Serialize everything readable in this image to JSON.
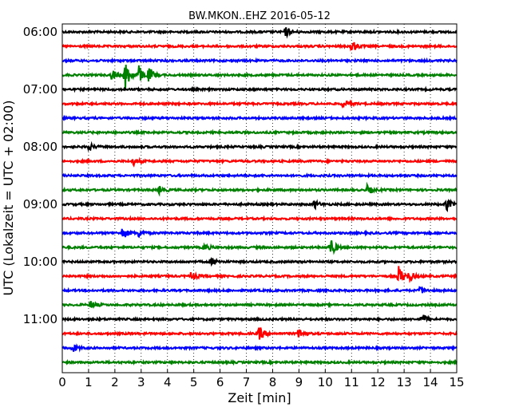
{
  "chart_data": {
    "type": "line",
    "title": "BW.MKON..EHZ 2016-05-12",
    "xlabel": "Zeit  [min]",
    "ylabel": "UTC (Lokalzeit = UTC + 02:00)",
    "xlim": [
      0,
      15
    ],
    "x_ticks": [
      "0",
      "1",
      "2",
      "3",
      "4",
      "5",
      "6",
      "7",
      "8",
      "9",
      "10",
      "11",
      "12",
      "13",
      "14",
      "15"
    ],
    "y_tick_labels": [
      "06:00",
      "07:00",
      "08:00",
      "09:00",
      "10:00",
      "11:00"
    ],
    "grid": "vertical dotted",
    "trace_interval_min": 15,
    "colors": [
      "#000000",
      "#ff0000",
      "#0000ff",
      "#008000"
    ],
    "series": [
      {
        "start": "06:00",
        "color": "#000000",
        "events": [
          {
            "t": 8.5,
            "amp": 0.5
          }
        ]
      },
      {
        "start": "06:15",
        "color": "#ff0000",
        "events": [
          {
            "t": 11.0,
            "amp": 0.7
          }
        ]
      },
      {
        "start": "06:30",
        "color": "#0000ff",
        "events": []
      },
      {
        "start": "06:45",
        "color": "#008000",
        "events": [
          {
            "t": 1.9,
            "amp": 0.6
          },
          {
            "t": 2.4,
            "amp": 1.6
          },
          {
            "t": 2.9,
            "amp": 1.0
          },
          {
            "t": 3.3,
            "amp": 0.7
          }
        ]
      },
      {
        "start": "07:00",
        "color": "#000000",
        "events": []
      },
      {
        "start": "07:15",
        "color": "#ff0000",
        "events": [
          {
            "t": 10.7,
            "amp": 0.5
          }
        ]
      },
      {
        "start": "07:30",
        "color": "#0000ff",
        "events": []
      },
      {
        "start": "07:45",
        "color": "#008000",
        "events": []
      },
      {
        "start": "08:00",
        "color": "#000000",
        "events": [
          {
            "t": 1.0,
            "amp": 0.4
          }
        ]
      },
      {
        "start": "08:15",
        "color": "#ff0000",
        "events": [
          {
            "t": 2.7,
            "amp": 0.4
          }
        ]
      },
      {
        "start": "08:30",
        "color": "#0000ff",
        "events": []
      },
      {
        "start": "08:45",
        "color": "#008000",
        "events": [
          {
            "t": 3.7,
            "amp": 0.4
          },
          {
            "t": 11.6,
            "amp": 0.5
          }
        ]
      },
      {
        "start": "09:00",
        "color": "#000000",
        "events": [
          {
            "t": 9.6,
            "amp": 0.4
          },
          {
            "t": 14.6,
            "amp": 0.7
          }
        ]
      },
      {
        "start": "09:15",
        "color": "#ff0000",
        "events": []
      },
      {
        "start": "09:30",
        "color": "#0000ff",
        "events": [
          {
            "t": 2.3,
            "amp": 0.7
          },
          {
            "t": 2.9,
            "amp": 0.4
          }
        ]
      },
      {
        "start": "09:45",
        "color": "#008000",
        "events": [
          {
            "t": 10.2,
            "amp": 1.0
          },
          {
            "t": 5.4,
            "amp": 0.4
          }
        ]
      },
      {
        "start": "10:00",
        "color": "#000000",
        "events": [
          {
            "t": 5.7,
            "amp": 0.4
          }
        ]
      },
      {
        "start": "10:15",
        "color": "#ff0000",
        "events": [
          {
            "t": 4.9,
            "amp": 0.5
          },
          {
            "t": 12.8,
            "amp": 1.1
          },
          {
            "t": 13.2,
            "amp": 0.5
          }
        ]
      },
      {
        "start": "10:30",
        "color": "#0000ff",
        "events": [
          {
            "t": 13.6,
            "amp": 0.4
          }
        ]
      },
      {
        "start": "10:45",
        "color": "#008000",
        "events": [
          {
            "t": 1.1,
            "amp": 0.4
          }
        ]
      },
      {
        "start": "11:00",
        "color": "#000000",
        "events": [
          {
            "t": 13.7,
            "amp": 0.5
          }
        ]
      },
      {
        "start": "11:15",
        "color": "#ff0000",
        "events": [
          {
            "t": 7.5,
            "amp": 0.8
          },
          {
            "t": 9.0,
            "amp": 0.6
          }
        ]
      },
      {
        "start": "11:30",
        "color": "#0000ff",
        "events": [
          {
            "t": 0.4,
            "amp": 0.4
          }
        ]
      },
      {
        "start": "11:45",
        "color": "#008000",
        "events": []
      }
    ]
  }
}
